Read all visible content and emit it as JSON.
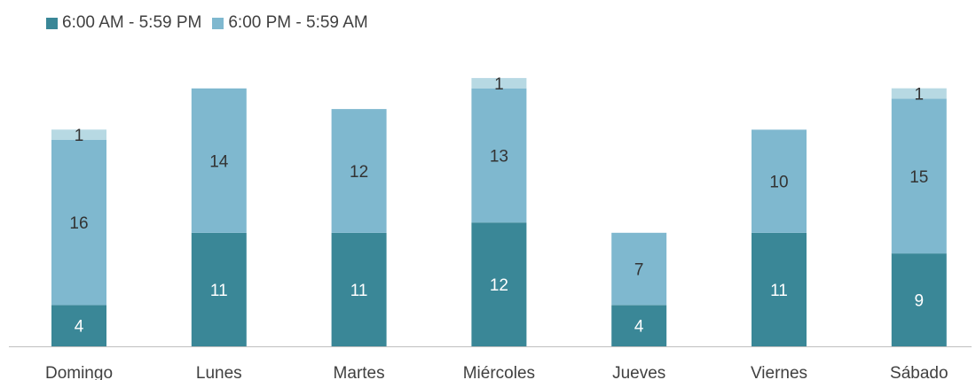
{
  "chart_data": {
    "type": "bar",
    "stacked": true,
    "categories": [
      "Domingo",
      "Lunes",
      "Martes",
      "Miércoles",
      "Jueves",
      "Viernes",
      "Sábado"
    ],
    "series": [
      {
        "name": "6:00 AM - 5:59 PM",
        "color": "#3a8797",
        "values": [
          4,
          11,
          11,
          12,
          4,
          11,
          9
        ]
      },
      {
        "name": "6:00 PM - 5:59 AM",
        "color": "#7fb8cf",
        "values": [
          16,
          14,
          12,
          13,
          7,
          10,
          15
        ]
      },
      {
        "name": "",
        "color": "#b7d9e3",
        "values": [
          1,
          0,
          0,
          1,
          0,
          0,
          1
        ]
      }
    ],
    "legend_position": "top-left",
    "grid": false
  },
  "colors": {
    "label_dark": "#333333",
    "label_light": "#ffffff",
    "tick_label": "#404040",
    "axis": "#bfbfbf"
  }
}
